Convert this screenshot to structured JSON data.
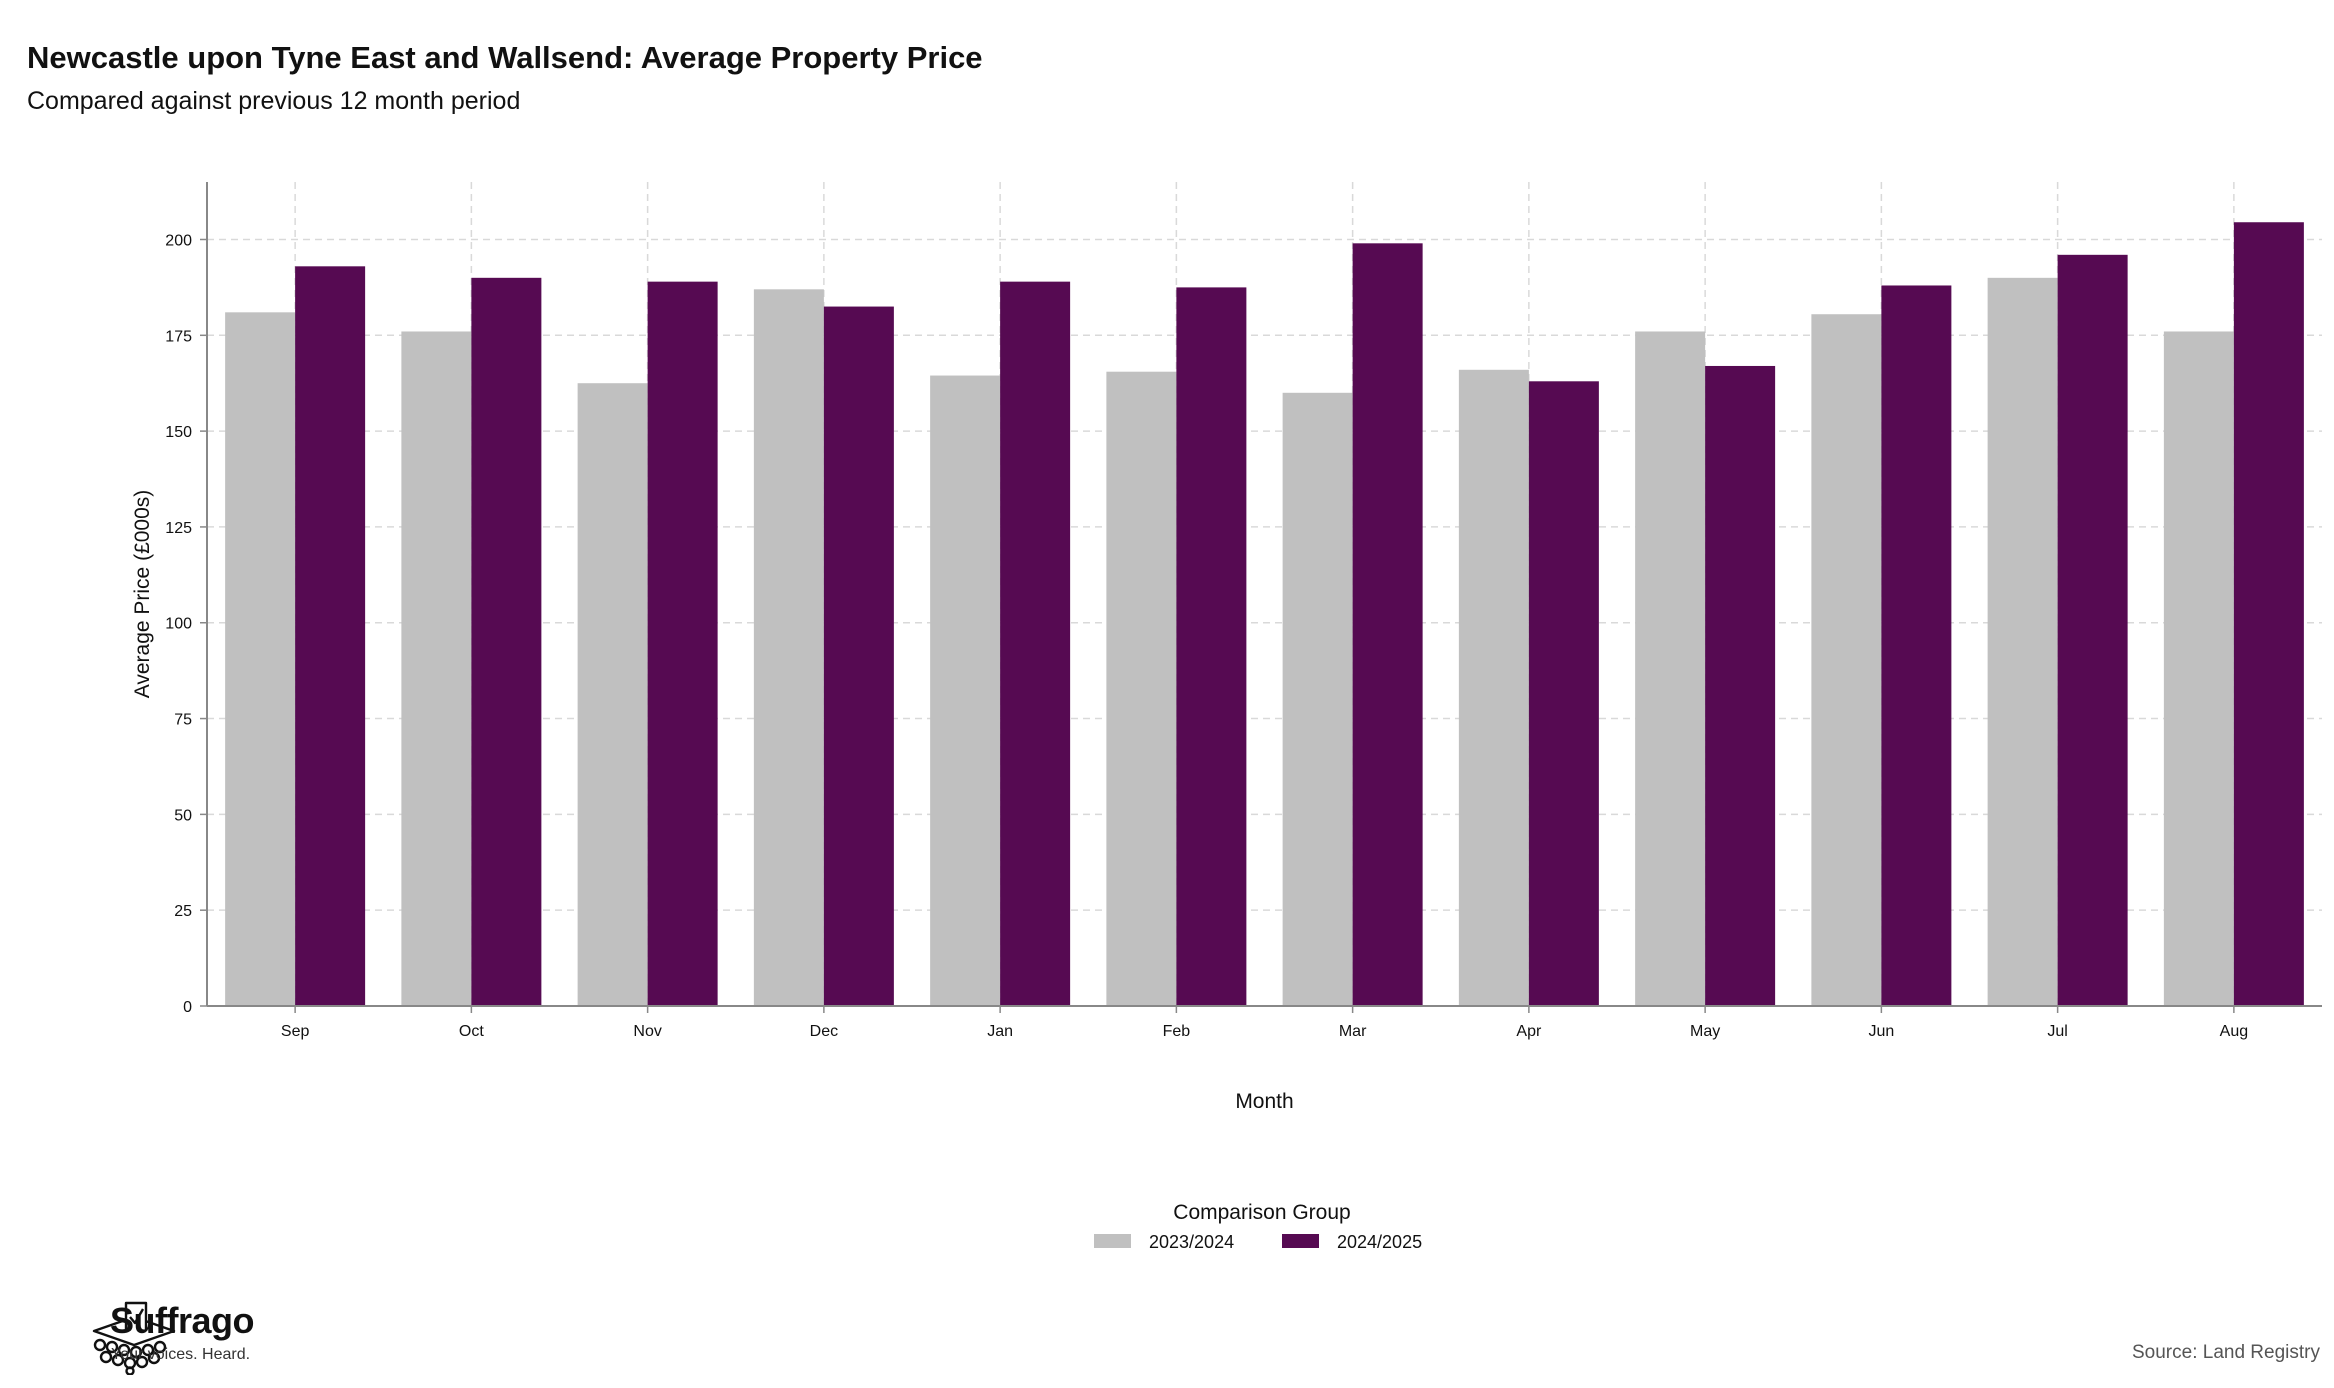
{
  "header": {
    "title": "Newcastle upon Tyne East and Wallsend: Average Property Price",
    "subtitle": "Compared against previous 12 month period"
  },
  "colors": {
    "series_2023": "#c0c0c0",
    "series_2024": "#560a52",
    "grid": "#d9d9d9",
    "axis": "#888888"
  },
  "chart_data": {
    "type": "bar",
    "title": "Newcastle upon Tyne East and Wallsend: Average Property Price",
    "subtitle": "Compared against previous 12 month period",
    "xlabel": "Month",
    "ylabel": "Average Price (£000s)",
    "ylim": [
      0,
      215
    ],
    "yticks": [
      0,
      25,
      50,
      75,
      100,
      125,
      150,
      175,
      200
    ],
    "grid": true,
    "legend": {
      "title": "Comparison Group",
      "placement": "bottom-center"
    },
    "categories": [
      "Sep",
      "Oct",
      "Nov",
      "Dec",
      "Jan",
      "Feb",
      "Mar",
      "Apr",
      "May",
      "Jun",
      "Jul",
      "Aug"
    ],
    "series": [
      {
        "name": "2023/2024",
        "color": "#c0c0c0",
        "values": [
          181,
          176,
          162.5,
          187,
          164.5,
          165.5,
          160,
          166,
          176,
          180.5,
          190,
          176
        ]
      },
      {
        "name": "2024/2025",
        "color": "#560a52",
        "values": [
          193,
          190,
          189,
          182.5,
          189,
          187.5,
          199,
          163,
          167,
          188,
          196,
          204.5
        ]
      }
    ]
  },
  "branding": {
    "name": "Suffrago",
    "tagline": "Your voices. Heard.",
    "logo_icon": "ballot-box-crowd-icon"
  },
  "source": "Source: Land Registry"
}
